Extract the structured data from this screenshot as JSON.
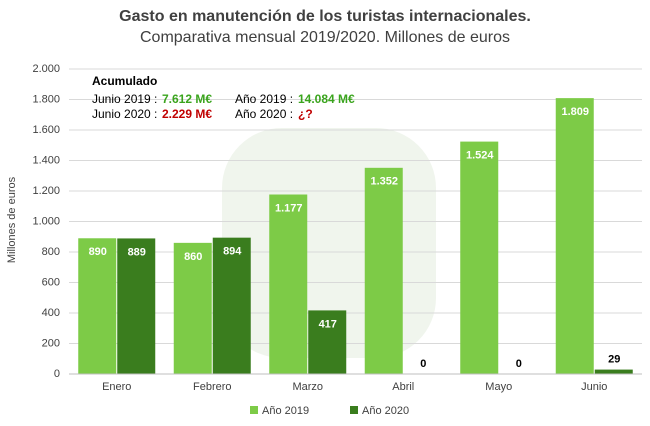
{
  "chart_data": {
    "type": "bar",
    "title": "Gasto en manutención de los turistas internacionales.",
    "subtitle": "Comparativa mensual 2019/2020. Millones de euros",
    "y_label": "Millones de euros",
    "categories": [
      "Enero",
      "Febrero",
      "Marzo",
      "Abril",
      "Mayo",
      "Junio"
    ],
    "series": [
      {
        "name": "Año 2019",
        "color": "#7dcb47",
        "values": [
          890,
          860,
          1177,
          1352,
          1524,
          1809
        ],
        "value_labels": [
          "890",
          "860",
          "1.177",
          "1.352",
          "1.524",
          "1.809"
        ]
      },
      {
        "name": "Año 2020",
        "color": "#3a7d1e",
        "values": [
          889,
          894,
          417,
          0,
          0,
          29
        ],
        "value_labels": [
          "889",
          "894",
          "417",
          "0",
          "0",
          "29"
        ]
      }
    ],
    "ylim": [
      0,
      2000
    ],
    "yticks": [
      0,
      200,
      400,
      600,
      800,
      {
        "value": 1000,
        "label": "1.000"
      },
      {
        "value": 1200,
        "label": "1.200"
      },
      {
        "value": 1400,
        "label": "1.400"
      },
      {
        "value": 1600,
        "label": "1.600"
      },
      {
        "value": 1800,
        "label": "1.800"
      },
      {
        "value": 2000,
        "label": "2.000"
      }
    ],
    "grid": true,
    "legend": "bottom",
    "annotations": [
      "Acumulado",
      "Junio 2019 :",
      "7.612 M€",
      "Junio 2020 :",
      "2.229 M€",
      "Año 2019 :",
      "14.084 M€",
      "Año 2020 :",
      "¿?"
    ]
  }
}
